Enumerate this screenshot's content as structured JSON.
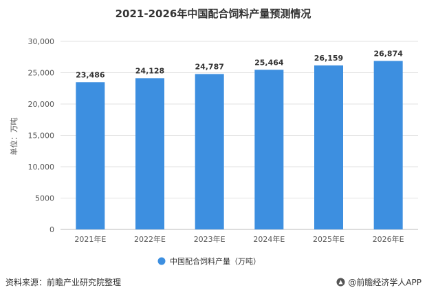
{
  "chart_data": {
    "type": "bar",
    "title": "2021-2026年中国配合饲料产量预测情况",
    "ylabel": "单位：万吨",
    "categories": [
      "2021年E",
      "2022年E",
      "2023年E",
      "2024年E",
      "2025年E",
      "2026年E"
    ],
    "series": [
      {
        "name": "中国配合饲料产量（万吨）",
        "values": [
          23486,
          24128,
          24787,
          25464,
          26159,
          26874
        ]
      }
    ],
    "data_labels": [
      "23,486",
      "24,128",
      "24,787",
      "25,464",
      "26,159",
      "26,874"
    ],
    "yticks": [
      "0",
      "5000",
      "10,000",
      "15,000",
      "20,000",
      "25,000",
      "30,000"
    ],
    "ylim": [
      0,
      30000
    ],
    "grid": true,
    "legend_position": "bottom",
    "bar_color": "#3d8fe0"
  },
  "footer": {
    "source": "资料来源：前瞻产业研究院整理",
    "brand": "@前瞻经济学人APP"
  }
}
